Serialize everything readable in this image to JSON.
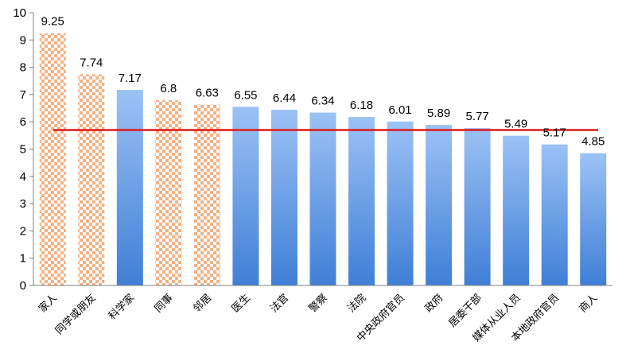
{
  "chart_data": {
    "type": "bar",
    "categories": [
      "家人",
      "同学或朋友",
      "科学家",
      "同事",
      "邻居",
      "医生",
      "法官",
      "警察",
      "法院",
      "中央政府官员",
      "政府",
      "居委干部",
      "媒体从业人员",
      "本地政府官员",
      "商人"
    ],
    "values": [
      9.25,
      7.74,
      7.17,
      6.8,
      6.63,
      6.55,
      6.44,
      6.34,
      6.18,
      6.01,
      5.89,
      5.77,
      5.49,
      5.17,
      4.85
    ],
    "value_labels": [
      "9.25",
      "7.74",
      "7.17",
      "6.8",
      "6.63",
      "6.55",
      "6.44",
      "6.34",
      "6.18",
      "6.01",
      "5.89",
      "5.77",
      "5.49",
      "5.17",
      "4.85"
    ],
    "highlighted": [
      true,
      true,
      false,
      true,
      true,
      false,
      false,
      false,
      false,
      false,
      false,
      false,
      false,
      false,
      false
    ],
    "reference_line": 5.7,
    "ylim": [
      0,
      10
    ],
    "yticks": [
      "0",
      "1",
      "2",
      "3",
      "4",
      "5",
      "6",
      "7",
      "8",
      "9",
      "10"
    ],
    "grid": false,
    "colors": {
      "bar_top": "#9cc2f5",
      "bar_bottom": "#3f7fd6",
      "pattern_fg": "#f4b183",
      "pattern_bg": "#ffffff",
      "reference_line": "#e01818",
      "axis": "#808080"
    }
  }
}
